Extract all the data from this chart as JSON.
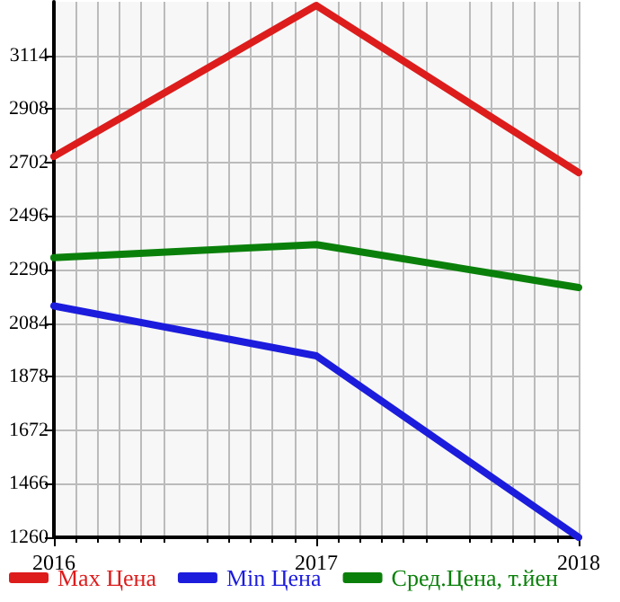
{
  "chart_data": {
    "type": "line",
    "x": [
      2016,
      2017,
      2018
    ],
    "xlim": [
      2016,
      2018
    ],
    "xticks": [
      2016,
      2017,
      2018
    ],
    "ylim": [
      1260,
      3320
    ],
    "yticks": [
      1260,
      1466,
      1672,
      1878,
      2084,
      2290,
      2496,
      2702,
      2908,
      3114
    ],
    "series": [
      {
        "name": "Max Цена",
        "color": "#dd1c1c",
        "values": [
          2725,
          3306,
          2663
        ]
      },
      {
        "name": "Min Цена",
        "color": "#1c1cdd",
        "values": [
          2150,
          1958,
          1260
        ]
      },
      {
        "name": "Сред.Цена, т.йен",
        "color": "#0a800a",
        "values": [
          2336,
          2386,
          2221
        ]
      }
    ],
    "grid": true,
    "legend": "bottom",
    "marker": "none",
    "line_style": "solid"
  }
}
